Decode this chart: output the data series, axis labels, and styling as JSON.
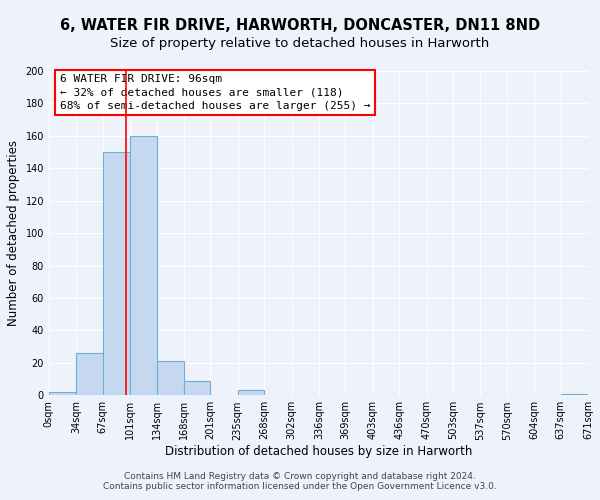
{
  "title": "6, WATER FIR DRIVE, HARWORTH, DONCASTER, DN11 8ND",
  "subtitle": "Size of property relative to detached houses in Harworth",
  "xlabel": "Distribution of detached houses by size in Harworth",
  "ylabel": "Number of detached properties",
  "bin_edges": [
    0,
    34,
    67,
    101,
    134,
    168,
    201,
    235,
    268,
    302,
    336,
    369,
    403,
    436,
    470,
    503,
    537,
    570,
    604,
    637,
    671
  ],
  "bin_counts": [
    2,
    26,
    150,
    160,
    21,
    9,
    0,
    3,
    0,
    0,
    0,
    0,
    0,
    0,
    0,
    0,
    0,
    0,
    0,
    1
  ],
  "bar_color": "#c5d8f0",
  "bar_edge_color": "#6baed6",
  "vline_x": 96,
  "vline_color": "red",
  "ylim": [
    0,
    200
  ],
  "yticks": [
    0,
    20,
    40,
    60,
    80,
    100,
    120,
    140,
    160,
    180,
    200
  ],
  "annotation_line1": "6 WATER FIR DRIVE: 96sqm",
  "annotation_line2": "← 32% of detached houses are smaller (118)",
  "annotation_line3": "68% of semi-detached houses are larger (255) →",
  "footer_line1": "Contains HM Land Registry data © Crown copyright and database right 2024.",
  "footer_line2": "Contains public sector information licensed under the Open Government Licence v3.0.",
  "background_color": "#eef2fb",
  "title_fontsize": 10.5,
  "subtitle_fontsize": 9.5,
  "axis_label_fontsize": 8.5,
  "tick_label_fontsize": 7,
  "annotation_fontsize": 8,
  "footer_fontsize": 6.5
}
